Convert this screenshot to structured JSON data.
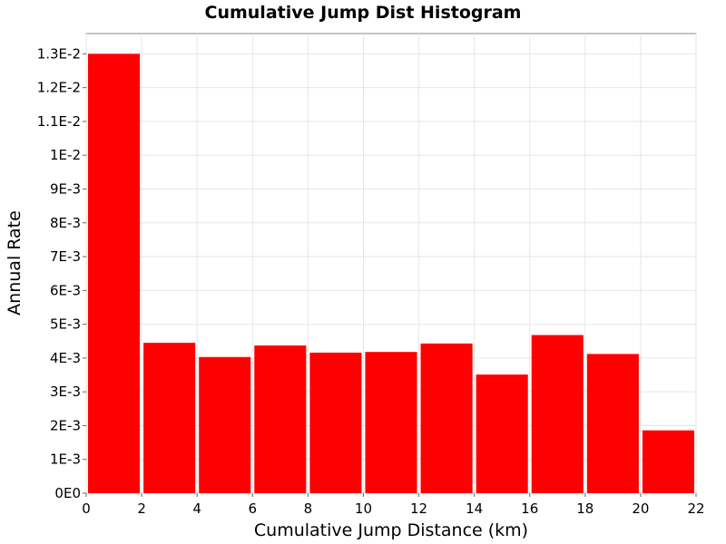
{
  "chart_data": {
    "type": "bar",
    "title": "Cumulative Jump Dist Histogram",
    "xlabel": "Cumulative Jump Distance (km)",
    "ylabel": "Annual Rate",
    "xlim": [
      0,
      22
    ],
    "ylim": [
      0,
      0.0136
    ],
    "x_ticks": [
      0,
      2,
      4,
      6,
      8,
      10,
      12,
      14,
      16,
      18,
      20,
      22
    ],
    "x_tick_labels": [
      "0",
      "2",
      "4",
      "6",
      "8",
      "10",
      "12",
      "14",
      "16",
      "18",
      "20",
      "22"
    ],
    "y_ticks": [
      0,
      0.001,
      0.002,
      0.003,
      0.004,
      0.005,
      0.006,
      0.007,
      0.008,
      0.009,
      0.01,
      0.011,
      0.012,
      0.013
    ],
    "y_tick_labels": [
      "0E0",
      "1E-3",
      "2E-3",
      "3E-3",
      "4E-3",
      "5E-3",
      "6E-3",
      "7E-3",
      "8E-3",
      "9E-3",
      "1E-2",
      "1.1E-2",
      "1.2E-2",
      "1.3E-2"
    ],
    "bar_color": "#ff0000",
    "grid": true,
    "bars": [
      {
        "x0": 0,
        "x1": 2,
        "value": 0.013
      },
      {
        "x0": 2,
        "x1": 4,
        "value": 0.00445
      },
      {
        "x0": 4,
        "x1": 6,
        "value": 0.00403
      },
      {
        "x0": 6,
        "x1": 8,
        "value": 0.00437
      },
      {
        "x0": 8,
        "x1": 10,
        "value": 0.00416
      },
      {
        "x0": 10,
        "x1": 12,
        "value": 0.00418
      },
      {
        "x0": 12,
        "x1": 14,
        "value": 0.00443
      },
      {
        "x0": 14,
        "x1": 16,
        "value": 0.00351
      },
      {
        "x0": 16,
        "x1": 18,
        "value": 0.00468
      },
      {
        "x0": 18,
        "x1": 20,
        "value": 0.00412
      },
      {
        "x0": 20,
        "x1": 22,
        "value": 0.00186
      }
    ]
  }
}
